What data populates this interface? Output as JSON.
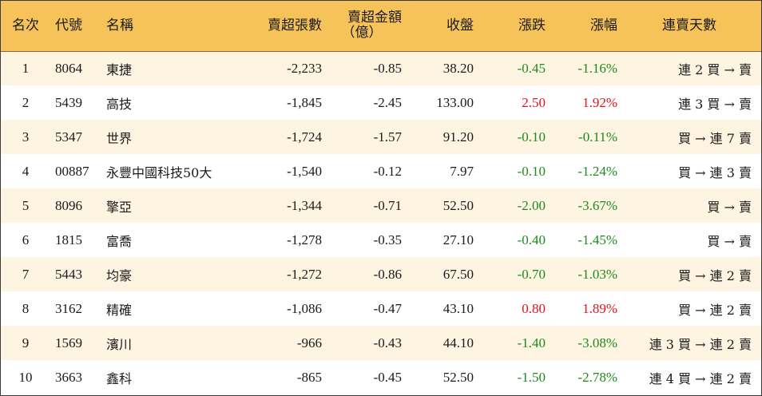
{
  "colors": {
    "header_bg": "#f6c35a",
    "odd_row_bg": "#fdf4e1",
    "even_row_bg": "#ffffff",
    "down": "#1e8a1e",
    "up": "#e0141e"
  },
  "headers": {
    "rank": "名次",
    "code": "代號",
    "name": "名稱",
    "net_sell_lots": "賣超張數",
    "net_sell_amount_line1": "賣超金額",
    "net_sell_amount_line2": "（億）",
    "close": "收盤",
    "change": "漲跌",
    "change_pct": "漲幅",
    "streak": "連賣天數"
  },
  "rows": [
    {
      "rank": "1",
      "code": "8064",
      "name": "東捷",
      "net_sell_lots": "-2,233",
      "net_sell_amount": "-0.85",
      "close": "38.20",
      "change": "-0.45",
      "change_pct": "-1.16%",
      "direction": "down",
      "streak": "連 2 買 → 賣"
    },
    {
      "rank": "2",
      "code": "5439",
      "name": "高技",
      "net_sell_lots": "-1,845",
      "net_sell_amount": "-2.45",
      "close": "133.00",
      "change": "2.50",
      "change_pct": "1.92%",
      "direction": "up",
      "streak": "連 3 買 → 賣"
    },
    {
      "rank": "3",
      "code": "5347",
      "name": "世界",
      "net_sell_lots": "-1,724",
      "net_sell_amount": "-1.57",
      "close": "91.20",
      "change": "-0.10",
      "change_pct": "-0.11%",
      "direction": "down",
      "streak": "買 → 連 7 賣"
    },
    {
      "rank": "4",
      "code": "00887",
      "name": "永豐中國科技50大",
      "net_sell_lots": "-1,540",
      "net_sell_amount": "-0.12",
      "close": "7.97",
      "change": "-0.10",
      "change_pct": "-1.24%",
      "direction": "down",
      "streak": "買 → 連 3 賣"
    },
    {
      "rank": "5",
      "code": "8096",
      "name": "擎亞",
      "net_sell_lots": "-1,344",
      "net_sell_amount": "-0.71",
      "close": "52.50",
      "change": "-2.00",
      "change_pct": "-3.67%",
      "direction": "down",
      "streak": "買 → 賣"
    },
    {
      "rank": "6",
      "code": "1815",
      "name": "富喬",
      "net_sell_lots": "-1,278",
      "net_sell_amount": "-0.35",
      "close": "27.10",
      "change": "-0.40",
      "change_pct": "-1.45%",
      "direction": "down",
      "streak": "買 → 賣"
    },
    {
      "rank": "7",
      "code": "5443",
      "name": "均豪",
      "net_sell_lots": "-1,272",
      "net_sell_amount": "-0.86",
      "close": "67.50",
      "change": "-0.70",
      "change_pct": "-1.03%",
      "direction": "down",
      "streak": "買 → 連 2 賣"
    },
    {
      "rank": "8",
      "code": "3162",
      "name": "精確",
      "net_sell_lots": "-1,086",
      "net_sell_amount": "-0.47",
      "close": "43.10",
      "change": "0.80",
      "change_pct": "1.89%",
      "direction": "up",
      "streak": "買 → 連 2 賣"
    },
    {
      "rank": "9",
      "code": "1569",
      "name": "濱川",
      "net_sell_lots": "-966",
      "net_sell_amount": "-0.43",
      "close": "44.10",
      "change": "-1.40",
      "change_pct": "-3.08%",
      "direction": "down",
      "streak": "連 3 買 → 連 2 賣"
    },
    {
      "rank": "10",
      "code": "3663",
      "name": "鑫科",
      "net_sell_lots": "-865",
      "net_sell_amount": "-0.45",
      "close": "52.50",
      "change": "-1.50",
      "change_pct": "-2.78%",
      "direction": "down",
      "streak": "連 4 買 → 連 2 賣"
    }
  ]
}
